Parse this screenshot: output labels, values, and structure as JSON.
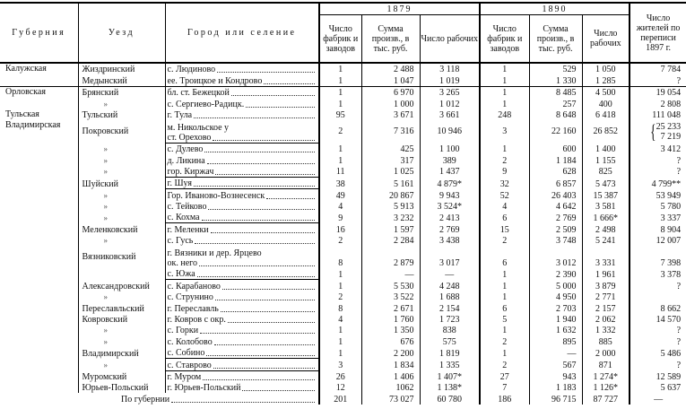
{
  "header": {
    "guberniya": "Губерния",
    "uezd": "Уезд",
    "place": "Город или селение",
    "year1": "1879",
    "year2": "1890",
    "y1_factories": "Число фабрик и заводов",
    "y1_output": "Сумма произв., в тыс. руб.",
    "y1_workers": "Число рабочих",
    "y2_factories": "Число фабрик и заводов",
    "y2_output": "Сумма произв., в тыс. руб.",
    "y2_workers": "Число рабочих",
    "population": "Число жителей по переписи 1897 г."
  },
  "rows": [
    {
      "g": "Калужская",
      "u": "Жиздринский",
      "p": [
        "с. Людиново"
      ],
      "v": [
        "1",
        "2 488",
        "3 118",
        "1",
        "529",
        "1 050",
        "7 784"
      ],
      "grp": true
    },
    {
      "g": "",
      "u": "Медынский",
      "p": [
        "ее. Троицкое и Кондрово"
      ],
      "v": [
        "1",
        "1 047",
        "1 019",
        "1",
        "1 330",
        "1 285",
        "?"
      ]
    },
    {
      "g": "Орловская",
      "u": "Брянский",
      "p": [
        "бл. ст. Бежецкой"
      ],
      "v": [
        "1",
        "6 970",
        "3 265",
        "1",
        "8 485",
        "4 500",
        "19 054"
      ],
      "grp": true
    },
    {
      "g": "",
      "u": "»",
      "p": [
        "с. Сергиево-Радицк."
      ],
      "v": [
        "1",
        "1 000",
        "1 012",
        "1",
        "257",
        "400",
        "2 808"
      ]
    },
    {
      "g": "Тульская",
      "u": "Тульский",
      "p": [
        "г. Тула"
      ],
      "v": [
        "95",
        "3 671",
        "3 661",
        "248",
        "8 648",
        "6 418",
        "111 048"
      ]
    },
    {
      "g": "Владимирская",
      "u": "Покровский",
      "p": [
        "м. Никольское у",
        "ст. Орехово"
      ],
      "v": [
        "2",
        "7 316",
        "10 946",
        "3",
        "22 160",
        "26 852",
        [
          "25 233",
          "7 219"
        ]
      ]
    },
    {
      "g": "",
      "u": "»",
      "p": [
        "с. Дулево"
      ],
      "v": [
        "1",
        "425",
        "1 100",
        "1",
        "600",
        "1 400",
        "3 412"
      ],
      "sep": true
    },
    {
      "g": "",
      "u": "»",
      "p": [
        "д. Ликина"
      ],
      "v": [
        "1",
        "317",
        "389",
        "2",
        "1 184",
        "1 155",
        "?"
      ]
    },
    {
      "g": "",
      "u": "»",
      "p": [
        "гор. Киржач"
      ],
      "v": [
        "11",
        "1 025",
        "1 437",
        "9",
        "628",
        "825",
        "?"
      ]
    },
    {
      "g": "",
      "u": "Шуйский",
      "p": [
        "г. Шуя"
      ],
      "v": [
        "38",
        "5 161",
        "4 879*",
        "32",
        "6 857",
        "5 473",
        "4 799**"
      ],
      "sep": true
    },
    {
      "g": "",
      "u": "»",
      "p": [
        "Гор. Иваново-Вознесенск"
      ],
      "v": [
        "49",
        "20 867",
        "9 943",
        "52",
        "26 403",
        "15 387",
        "53 949"
      ],
      "sep": true
    },
    {
      "g": "",
      "u": "»",
      "p": [
        "с. Тейково"
      ],
      "v": [
        "4",
        "5 913",
        "3 524*",
        "4",
        "4 642",
        "3 581",
        "5 780"
      ]
    },
    {
      "g": "",
      "u": "»",
      "p": [
        "с. Кохма"
      ],
      "v": [
        "9",
        "3 232",
        "2 413",
        "6",
        "2 769",
        "1 666*",
        "3 337"
      ]
    },
    {
      "g": "",
      "u": "Меленковский",
      "p": [
        "г. Меленки"
      ],
      "v": [
        "16",
        "1 597",
        "2 769",
        "15",
        "2 509",
        "2 498",
        "8 904"
      ],
      "sep": true
    },
    {
      "g": "",
      "u": "»",
      "p": [
        "с. Гусь"
      ],
      "v": [
        "2",
        "2 284",
        "3 438",
        "2",
        "3 748",
        "5 241",
        "12 007"
      ]
    },
    {
      "g": "",
      "u": "Вязниковский",
      "p": [
        "г. Вязники и дер. Ярцево",
        "ок. него"
      ],
      "v": [
        "8",
        "2 879",
        "3 017",
        "6",
        "3 012",
        "3 331",
        "7 398"
      ]
    },
    {
      "g": "",
      "u": "",
      "p": [
        "с. Южа"
      ],
      "v": [
        "1",
        "—",
        "—",
        "1",
        "2 390",
        "1 961",
        "3 378"
      ]
    },
    {
      "g": "",
      "u": "Александровский",
      "p": [
        "с. Карабаново"
      ],
      "v": [
        "1",
        "5 530",
        "4 248",
        "1",
        "5 000",
        "3 879",
        "?"
      ],
      "sep": true
    },
    {
      "g": "",
      "u": "»",
      "p": [
        "с. Струнино"
      ],
      "v": [
        "2",
        "3 522",
        "1 688",
        "1",
        "4 950",
        "2 771",
        ""
      ]
    },
    {
      "g": "",
      "u": "Переславльский",
      "p": [
        "г. Переславль"
      ],
      "v": [
        "8",
        "2 671",
        "2 154",
        "6",
        "2 703",
        "2 157",
        "8 662"
      ]
    },
    {
      "g": "",
      "u": "Ковровский",
      "p": [
        "г. Ковров с окр."
      ],
      "v": [
        "4",
        "1 760",
        "1 723",
        "5",
        "1 940",
        "2 062",
        "14 570"
      ]
    },
    {
      "g": "",
      "u": "»",
      "p": [
        "с. Горки"
      ],
      "v": [
        "1",
        "1 350",
        "838",
        "1",
        "1 632",
        "1 332",
        "?"
      ]
    },
    {
      "g": "",
      "u": "»",
      "p": [
        "с. Колобово"
      ],
      "v": [
        "1",
        "676",
        "575",
        "2",
        "895",
        "885",
        "?"
      ]
    },
    {
      "g": "",
      "u": "Владимирский",
      "p": [
        "с. Собино"
      ],
      "v": [
        "1",
        "2 200",
        "1 819",
        "1",
        "—",
        "2 000",
        "5 486"
      ]
    },
    {
      "g": "",
      "u": "»",
      "p": [
        "с. Ставрово"
      ],
      "v": [
        "3",
        "1 834",
        "1 335",
        "2",
        "567",
        "871",
        "?"
      ],
      "sep": true
    },
    {
      "g": "",
      "u": "Муромский",
      "p": [
        "г. Муром"
      ],
      "v": [
        "26",
        "1 406",
        "1 407*",
        "27",
        "943",
        "1 274*",
        "12 589"
      ],
      "sep": true
    },
    {
      "g": "",
      "u": "Юрьев-Польский",
      "p": [
        "г. Юрьев-Польский"
      ],
      "v": [
        "12",
        "1062",
        "1 138*",
        "7",
        "1 183",
        "1 126*",
        "5 637"
      ]
    }
  ],
  "total": {
    "label": "По губернии",
    "v": [
      "201",
      "73 027",
      "60 780",
      "186",
      "96 715",
      "87 727",
      "—"
    ]
  }
}
